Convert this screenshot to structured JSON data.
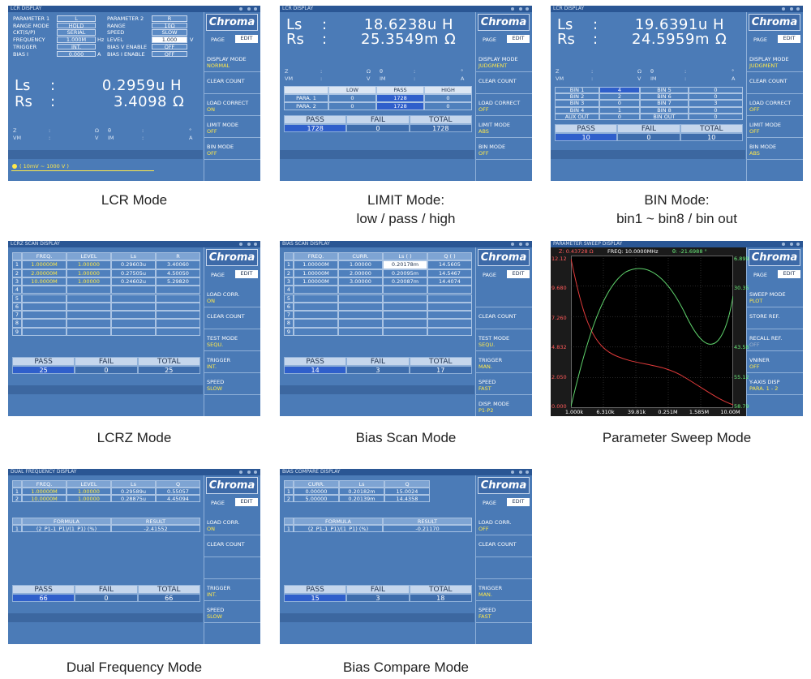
{
  "brand": "Chroma",
  "page": "PAGE",
  "edit": "EDIT",
  "count_labels": [
    "PASS",
    "FAIL",
    "TOTAL"
  ],
  "panels": {
    "lcr": {
      "title": "LCR DISPLAY",
      "caption": [
        "LCR Mode"
      ],
      "settings": [
        {
          "label": "PARAMETER 1",
          "value": "L"
        },
        {
          "label": "PARAMETER 2",
          "value": "R"
        },
        {
          "label": "RANGE MODE",
          "value": "HOLD"
        },
        {
          "label": "RANGE",
          "value": "10Ω"
        },
        {
          "label": "CKT(S/P)",
          "value": "SERIAL"
        },
        {
          "label": "SPEED",
          "value": "SLOW"
        },
        {
          "label": "FREQUENCY",
          "value": "1.000M",
          "unit": "Hz"
        },
        {
          "label": "LEVEL",
          "value": "1.000",
          "unit": "V"
        },
        {
          "label": "TRIGGER",
          "value": "INT."
        },
        {
          "label": "BIAS V ENABLE",
          "value": "OFF"
        },
        {
          "label": "BIAS I",
          "value": "0.000",
          "unit": "A"
        },
        {
          "label": "BIAS I ENABLE",
          "value": "OFF"
        }
      ],
      "readings": [
        {
          "label": "Ls",
          "sep": ":",
          "value": "0.2959u H"
        },
        {
          "label": "Rs",
          "sep": ":",
          "value": "3.4098",
          "unit": "Ω"
        }
      ],
      "aux": [
        [
          "Z",
          ":",
          "Ω",
          "θ",
          ":",
          "°"
        ],
        [
          "VM",
          ":",
          "V",
          "IM",
          ":",
          "A"
        ]
      ],
      "note": "( 10mV ~ 1000 V )",
      "menu": [
        {
          "label": "DISPLAY MODE",
          "value": "NORMAL"
        },
        {
          "label": "CLEAR COUNT"
        },
        {
          "label": "LOAD CORRECT",
          "value": "ON"
        },
        {
          "label": "LIMIT MODE",
          "value": "OFF"
        },
        {
          "label": "BIN MODE",
          "value": "OFF"
        }
      ]
    },
    "limit": {
      "title": "LCR DISPLAY",
      "caption": [
        "LIMIT Mode:",
        "low / pass / high"
      ],
      "readings": [
        {
          "label": "Ls",
          "sep": ":",
          "value": "18.6238u H"
        },
        {
          "label": "Rs",
          "sep": ":",
          "value": "25.3549m",
          "unit": "Ω"
        }
      ],
      "aux": [
        [
          "Z",
          ":",
          "Ω",
          "θ",
          ":",
          "°"
        ],
        [
          "VM",
          ":",
          "V",
          "IM",
          ":",
          "A"
        ]
      ],
      "table": {
        "header": [
          "LOW",
          "PASS",
          "HIGH"
        ],
        "rows": [
          [
            "PARA. 1",
            "0",
            "1728",
            "0"
          ],
          [
            "PARA. 2",
            "0",
            "1728",
            "0"
          ]
        ]
      },
      "counts": [
        "1728",
        "0",
        "1728"
      ],
      "menu": [
        {
          "label": "DISPLAY MODE",
          "value": "JUDGMENT"
        },
        {
          "label": "CLEAR COUNT"
        },
        {
          "label": "LOAD CORRECT",
          "value": "OFF"
        },
        {
          "label": "LIMIT MODE",
          "value": "ABS"
        },
        {
          "label": "BIN MODE",
          "value": "OFF"
        }
      ]
    },
    "bin": {
      "title": "LCR DISPLAY",
      "caption": [
        "BIN Mode:",
        "bin1 ~ bin8 / bin out"
      ],
      "readings": [
        {
          "label": "Ls",
          "sep": ":",
          "value": "19.6391u H"
        },
        {
          "label": "Rs",
          "sep": ":",
          "value": "24.5959m",
          "unit": "Ω"
        }
      ],
      "aux": [
        [
          "Z",
          ":",
          "Ω",
          "θ",
          ":",
          "°"
        ],
        [
          "VM",
          ":",
          "V",
          "IM",
          ":",
          "A"
        ]
      ],
      "table": {
        "rows": [
          [
            "BIN 1",
            "4",
            "BIN 5",
            "0"
          ],
          [
            "BIN 2",
            "2",
            "BIN 6",
            "0"
          ],
          [
            "BIN 3",
            "0",
            "BIN 7",
            "3"
          ],
          [
            "BIN 4",
            "1",
            "BIN 8",
            "0"
          ],
          [
            "AUX OUT",
            "0",
            "BIN OUT",
            "0"
          ]
        ]
      },
      "counts": [
        "10",
        "0",
        "10"
      ],
      "menu": [
        {
          "label": "DISPLAY MODE",
          "value": "JUDGMENT"
        },
        {
          "label": "CLEAR COUNT"
        },
        {
          "label": "LOAD CORRECT",
          "value": "OFF"
        },
        {
          "label": "LIMIT MODE",
          "value": "OFF"
        },
        {
          "label": "BIN MODE",
          "value": "ABS"
        }
      ]
    },
    "lcrz": {
      "title": "LCRZ SCAN DISPLAY",
      "caption": [
        "LCRZ Mode"
      ],
      "table": {
        "header": [
          "FREQ.",
          "LEVEL",
          "Ls",
          "R"
        ],
        "rows": [
          [
            "1",
            "1.00000M",
            "1.00000",
            "0.29603u",
            "3.40060"
          ],
          [
            "2",
            "2.00000M",
            "1.00000",
            "0.27505u",
            "4.50050"
          ],
          [
            "3",
            "10.0000M",
            "1.00000",
            "0.24602u",
            "5.29820"
          ],
          [
            "4"
          ],
          [
            "5"
          ],
          [
            "6"
          ],
          [
            "7"
          ],
          [
            "8"
          ],
          [
            "9"
          ]
        ]
      },
      "counts": [
        "25",
        "0",
        "25"
      ],
      "menu": [
        {
          "label": "LOAD CORR.",
          "value": "ON"
        },
        {
          "label": "CLEAR COUNT"
        },
        {
          "label": "TEST MODE",
          "value": "SEQU."
        },
        {
          "label": "TRIGGER",
          "value": "INT."
        },
        {
          "label": "SPEED",
          "value": "SLOW"
        }
      ]
    },
    "bias": {
      "title": "BIAS SCAN DISPLAY",
      "caption": [
        "Bias Scan Mode"
      ],
      "table": {
        "header": [
          "FREQ.",
          "CURR.",
          "Ls ( )",
          "Q ( )"
        ],
        "rows": [
          [
            "1",
            "1.00000M",
            "1.00000",
            "0.20178m",
            "14.5605"
          ],
          [
            "2",
            "1.00000M",
            "2.00000",
            "0.20095m",
            "14.5467"
          ],
          [
            "3",
            "1.00000M",
            "3.00000",
            "0.20087m",
            "14.4074"
          ],
          [
            "4"
          ],
          [
            "5"
          ],
          [
            "6"
          ],
          [
            "7"
          ],
          [
            "8"
          ],
          [
            "9"
          ]
        ]
      },
      "counts": [
        "14",
        "3",
        "17"
      ],
      "menu": [
        {
          "label": "CLEAR COUNT"
        },
        {
          "label": "TEST MODE",
          "value": "SEQU."
        },
        {
          "label": "TRIGGER",
          "value": "MAN."
        },
        {
          "label": "SPEED",
          "value": "FAST"
        },
        {
          "label": "DISP. MODE",
          "value": "P1-P2"
        }
      ]
    },
    "sweep": {
      "title": "PARAMETER SWEEP DISPLAY",
      "caption": [
        "Parameter Sweep Mode"
      ],
      "header": [
        "Z: 0.43728 Ω",
        "FREQ: 10.0000MHz",
        "θ: -21.6988 °"
      ],
      "left_axis": [
        "12.12",
        "9.680",
        "7.260",
        "4.832",
        "2.050",
        "0.000"
      ],
      "right_axis": [
        "6.899",
        "30.35",
        "43.56",
        "55.12",
        "58.79"
      ],
      "x_axis": [
        "1.000k",
        "6.310k",
        "39.81k",
        "0.251M",
        "1.585M",
        "10.00M"
      ],
      "menu": [
        {
          "label": "SWEEP MODE",
          "value": "PLOT"
        },
        {
          "label": "STORE REF."
        },
        {
          "label": "RECALL REF.",
          "value": "OFF"
        },
        {
          "label": "VNINER",
          "value": "OFF"
        },
        {
          "label": "Y-AXIS DISP",
          "value": "PARA. 1 - 2"
        }
      ]
    },
    "dual": {
      "title": "DUAL FREQUENCY DISPLAY",
      "caption": [
        "Dual Frequency Mode"
      ],
      "table": {
        "header": [
          "FREQ.",
          "LEVEL",
          "Ls",
          "Q"
        ],
        "rows": [
          [
            "1",
            "1.00000M",
            "1.00000",
            "0.29589u",
            "0.55057"
          ],
          [
            "2",
            "10.0000M",
            "1.00000",
            "0.28875u",
            "4.45094"
          ]
        ]
      },
      "formula": {
        "header": [
          "FORMULA",
          "RESULT"
        ],
        "rows": [
          [
            "1",
            "(2_P1-1_P1)/(1_P1) (%)",
            "-2.41552"
          ]
        ]
      },
      "counts": [
        "66",
        "0",
        "66"
      ],
      "menu": [
        {
          "label": "LOAD CORR.",
          "value": "ON"
        },
        {
          "label": "CLEAR COUNT"
        },
        {
          "label": "TRIGGER",
          "value": "INT."
        },
        {
          "label": "SPEED",
          "value": "SLOW"
        }
      ]
    },
    "compare": {
      "title": "BIAS COMPARE DISPLAY",
      "caption": [
        "Bias Compare Mode"
      ],
      "table": {
        "header": [
          "CURR.",
          "Ls",
          "Q"
        ],
        "rows": [
          [
            "1",
            "0.00000",
            "0.20182m",
            "15.0024"
          ],
          [
            "2",
            "5.00000",
            "0.20139m",
            "14.4358"
          ]
        ]
      },
      "formula": {
        "header": [
          "FORMULA",
          "RESULT"
        ],
        "rows": [
          [
            "1",
            "(2_P1-1_P1)/(1_P1) (%)",
            "-0.21170"
          ]
        ]
      },
      "counts": [
        "15",
        "3",
        "18"
      ],
      "menu": [
        {
          "label": "LOAD CORR.",
          "value": "OFF"
        },
        {
          "label": "CLEAR COUNT"
        },
        {
          "label": "TRIGGER",
          "value": "MAN."
        },
        {
          "label": "SPEED",
          "value": "FAST"
        }
      ]
    }
  }
}
